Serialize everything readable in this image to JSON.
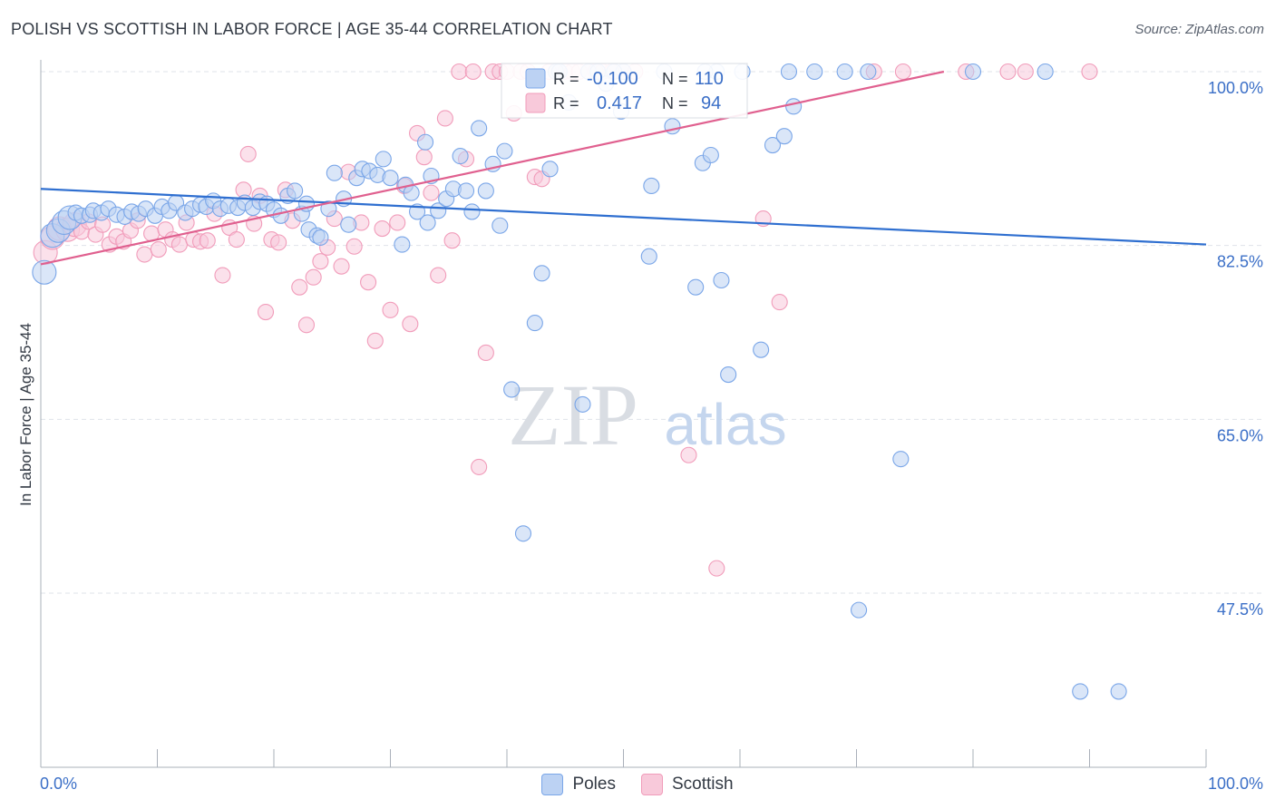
{
  "header": {
    "title": "POLISH VS SCOTTISH IN LABOR FORCE | AGE 35-44 CORRELATION CHART",
    "source": "Source: ZipAtlas.com"
  },
  "colors": {
    "poles": "#7aa6e8",
    "poles_line": "#2f6fd0",
    "scottish": "#f19cba",
    "scottish_line": "#e0608f",
    "axis_label": "#3b6fc7",
    "grid": "#dfe3ea"
  },
  "stats_box": {
    "poles": {
      "r_label": "R =",
      "r_value": "-0.100",
      "n_label": "N =",
      "n_value": "110"
    },
    "scottish": {
      "r_label": "R =",
      "r_value": "0.417",
      "n_label": "N =",
      "n_value": "94"
    }
  },
  "watermark": {
    "zip": "ZIP",
    "atlas": "atlas"
  },
  "chart_data": {
    "type": "scatter",
    "title": "POLISH VS SCOTTISH IN LABOR FORCE | AGE 35-44 CORRELATION CHART",
    "xlabel": "",
    "ylabel": "In Labor Force | Age 35-44",
    "xlim": [
      0,
      100
    ],
    "ylim": [
      29.5,
      101
    ],
    "x_tick_labels": [
      "0.0%",
      "100.0%"
    ],
    "y_ticks": [
      47.5,
      65.0,
      82.5,
      100.0
    ],
    "y_tick_labels": [
      "47.5%",
      "65.0%",
      "82.5%",
      "100.0%"
    ],
    "grid": true,
    "legend_position": "bottom-center",
    "series": [
      {
        "name": "Poles",
        "r": -0.1,
        "n": 110,
        "trend": {
          "x": [
            0,
            100
          ],
          "y": [
            88.2,
            82.6
          ]
        },
        "points": [
          [
            0.3,
            79.8
          ],
          [
            1.0,
            83.5
          ],
          [
            1.5,
            84.0
          ],
          [
            2.0,
            84.8
          ],
          [
            2.5,
            85.3
          ],
          [
            3.0,
            85.8
          ],
          [
            3.5,
            85.5
          ],
          [
            4.2,
            85.6
          ],
          [
            4.5,
            86.0
          ],
          [
            5.2,
            85.8
          ],
          [
            5.8,
            86.2
          ],
          [
            6.5,
            85.6
          ],
          [
            7.2,
            85.4
          ],
          [
            7.8,
            85.9
          ],
          [
            8.4,
            85.7
          ],
          [
            9.0,
            86.2
          ],
          [
            9.8,
            85.5
          ],
          [
            10.4,
            86.4
          ],
          [
            11.0,
            86.0
          ],
          [
            11.6,
            86.8
          ],
          [
            12.4,
            85.8
          ],
          [
            13.0,
            86.2
          ],
          [
            13.7,
            86.6
          ],
          [
            14.2,
            86.4
          ],
          [
            14.8,
            87.0
          ],
          [
            15.4,
            86.2
          ],
          [
            16.1,
            86.5
          ],
          [
            16.9,
            86.3
          ],
          [
            17.5,
            86.8
          ],
          [
            18.2,
            86.3
          ],
          [
            18.8,
            86.9
          ],
          [
            19.4,
            86.7
          ],
          [
            20.0,
            86.1
          ],
          [
            20.6,
            85.5
          ],
          [
            21.2,
            87.5
          ],
          [
            21.8,
            88.0
          ],
          [
            22.4,
            85.7
          ],
          [
            22.8,
            86.7
          ],
          [
            23.0,
            84.1
          ],
          [
            23.7,
            83.5
          ],
          [
            24.0,
            83.3
          ],
          [
            24.7,
            86.2
          ],
          [
            25.2,
            89.8
          ],
          [
            26.0,
            87.2
          ],
          [
            26.4,
            84.6
          ],
          [
            27.1,
            89.3
          ],
          [
            27.6,
            90.2
          ],
          [
            28.2,
            90.0
          ],
          [
            28.9,
            89.6
          ],
          [
            29.4,
            91.2
          ],
          [
            30.0,
            89.3
          ],
          [
            31.0,
            82.6
          ],
          [
            31.3,
            88.6
          ],
          [
            31.8,
            87.8
          ],
          [
            32.3,
            85.9
          ],
          [
            33.0,
            92.9
          ],
          [
            33.2,
            84.8
          ],
          [
            33.5,
            89.5
          ],
          [
            34.1,
            86.0
          ],
          [
            34.8,
            87.2
          ],
          [
            35.4,
            88.2
          ],
          [
            36.0,
            91.5
          ],
          [
            36.5,
            88.0
          ],
          [
            37.0,
            85.9
          ],
          [
            37.6,
            94.3
          ],
          [
            38.2,
            88.0
          ],
          [
            38.8,
            90.7
          ],
          [
            39.4,
            84.5
          ],
          [
            39.8,
            92.0
          ],
          [
            40.4,
            68.0
          ],
          [
            41.4,
            53.5
          ],
          [
            42.4,
            74.7
          ],
          [
            43.0,
            79.7
          ],
          [
            43.7,
            90.2
          ],
          [
            44.2,
            100.0
          ],
          [
            45.3,
            96.9
          ],
          [
            46.5,
            66.5
          ],
          [
            47.0,
            100.0
          ],
          [
            48.5,
            98.8
          ],
          [
            49.8,
            96.0
          ],
          [
            50.0,
            100.0
          ],
          [
            52.2,
            81.4
          ],
          [
            52.4,
            88.5
          ],
          [
            54.2,
            94.5
          ],
          [
            56.2,
            78.3
          ],
          [
            56.8,
            90.8
          ],
          [
            57.5,
            91.6
          ],
          [
            58.0,
            100.0
          ],
          [
            58.4,
            79.0
          ],
          [
            59.0,
            69.5
          ],
          [
            60.2,
            100.0
          ],
          [
            61.8,
            72.0
          ],
          [
            62.8,
            92.6
          ],
          [
            63.8,
            93.5
          ],
          [
            64.2,
            100.0
          ],
          [
            64.6,
            96.5
          ],
          [
            66.4,
            100.0
          ],
          [
            69.0,
            100.0
          ],
          [
            70.2,
            45.8
          ],
          [
            71.0,
            100.0
          ],
          [
            73.8,
            61.0
          ],
          [
            80.0,
            100.0
          ],
          [
            86.2,
            100.0
          ],
          [
            89.2,
            37.6
          ],
          [
            92.5,
            37.6
          ],
          [
            44.5,
            100.0
          ],
          [
            47.8,
            100.0
          ],
          [
            49.2,
            100.0
          ],
          [
            53.5,
            100.0
          ],
          [
            57.0,
            100.0
          ]
        ]
      },
      {
        "name": "Scottish",
        "r": 0.417,
        "n": 94,
        "trend": {
          "x": [
            0,
            77.5
          ],
          "y": [
            80.6,
            100.0
          ]
        },
        "points": [
          [
            0.4,
            81.8
          ],
          [
            1.0,
            83.3
          ],
          [
            1.6,
            84.2
          ],
          [
            2.3,
            84.1
          ],
          [
            2.9,
            84.6
          ],
          [
            3.5,
            83.9
          ],
          [
            4.1,
            84.9
          ],
          [
            4.7,
            83.6
          ],
          [
            5.3,
            84.6
          ],
          [
            5.9,
            82.6
          ],
          [
            6.5,
            83.4
          ],
          [
            7.1,
            82.9
          ],
          [
            7.7,
            84.0
          ],
          [
            8.3,
            85.0
          ],
          [
            8.9,
            81.6
          ],
          [
            9.5,
            83.7
          ],
          [
            10.1,
            82.1
          ],
          [
            10.7,
            84.1
          ],
          [
            11.3,
            83.1
          ],
          [
            11.9,
            82.6
          ],
          [
            12.5,
            84.8
          ],
          [
            13.1,
            83.1
          ],
          [
            13.7,
            82.9
          ],
          [
            14.3,
            83.0
          ],
          [
            14.9,
            85.7
          ],
          [
            15.6,
            79.5
          ],
          [
            16.2,
            84.3
          ],
          [
            16.8,
            83.1
          ],
          [
            17.4,
            88.1
          ],
          [
            17.8,
            91.7
          ],
          [
            18.3,
            84.7
          ],
          [
            18.8,
            87.5
          ],
          [
            19.3,
            75.8
          ],
          [
            19.8,
            83.1
          ],
          [
            20.4,
            82.8
          ],
          [
            21.0,
            88.1
          ],
          [
            21.6,
            85.0
          ],
          [
            22.2,
            78.3
          ],
          [
            22.8,
            74.5
          ],
          [
            23.4,
            79.3
          ],
          [
            24.0,
            80.9
          ],
          [
            24.6,
            82.3
          ],
          [
            25.2,
            85.2
          ],
          [
            25.8,
            80.4
          ],
          [
            26.4,
            89.9
          ],
          [
            26.9,
            82.4
          ],
          [
            27.5,
            84.8
          ],
          [
            28.1,
            78.8
          ],
          [
            28.7,
            72.9
          ],
          [
            29.3,
            84.2
          ],
          [
            30.0,
            76.0
          ],
          [
            30.6,
            84.8
          ],
          [
            31.2,
            88.5
          ],
          [
            31.7,
            74.6
          ],
          [
            32.3,
            93.8
          ],
          [
            32.9,
            91.4
          ],
          [
            33.5,
            87.8
          ],
          [
            34.1,
            79.5
          ],
          [
            34.7,
            95.3
          ],
          [
            35.3,
            83.0
          ],
          [
            35.9,
            100.0
          ],
          [
            36.5,
            91.2
          ],
          [
            37.1,
            100.0
          ],
          [
            37.6,
            60.2
          ],
          [
            38.2,
            71.7
          ],
          [
            38.8,
            100.0
          ],
          [
            39.4,
            100.0
          ],
          [
            40.0,
            100.0
          ],
          [
            40.6,
            95.8
          ],
          [
            41.2,
            100.0
          ],
          [
            41.8,
            100.0
          ],
          [
            42.4,
            89.4
          ],
          [
            43.0,
            89.2
          ],
          [
            43.6,
            100.0
          ],
          [
            44.2,
            100.0
          ],
          [
            45.0,
            100.0
          ],
          [
            45.6,
            100.0
          ],
          [
            46.2,
            100.0
          ],
          [
            47.0,
            100.0
          ],
          [
            47.6,
            100.0
          ],
          [
            48.2,
            100.0
          ],
          [
            49.0,
            100.0
          ],
          [
            50.0,
            100.0
          ],
          [
            51.0,
            100.0
          ],
          [
            55.6,
            61.4
          ],
          [
            58.0,
            50.0
          ],
          [
            62.0,
            85.2
          ],
          [
            63.4,
            76.8
          ],
          [
            71.5,
            100.0
          ],
          [
            74.0,
            100.0
          ],
          [
            79.4,
            100.0
          ],
          [
            83.0,
            100.0
          ],
          [
            84.5,
            100.0
          ],
          [
            90.0,
            100.0
          ]
        ]
      }
    ]
  },
  "legend": {
    "items": [
      {
        "label": "Poles"
      },
      {
        "label": "Scottish"
      }
    ]
  }
}
